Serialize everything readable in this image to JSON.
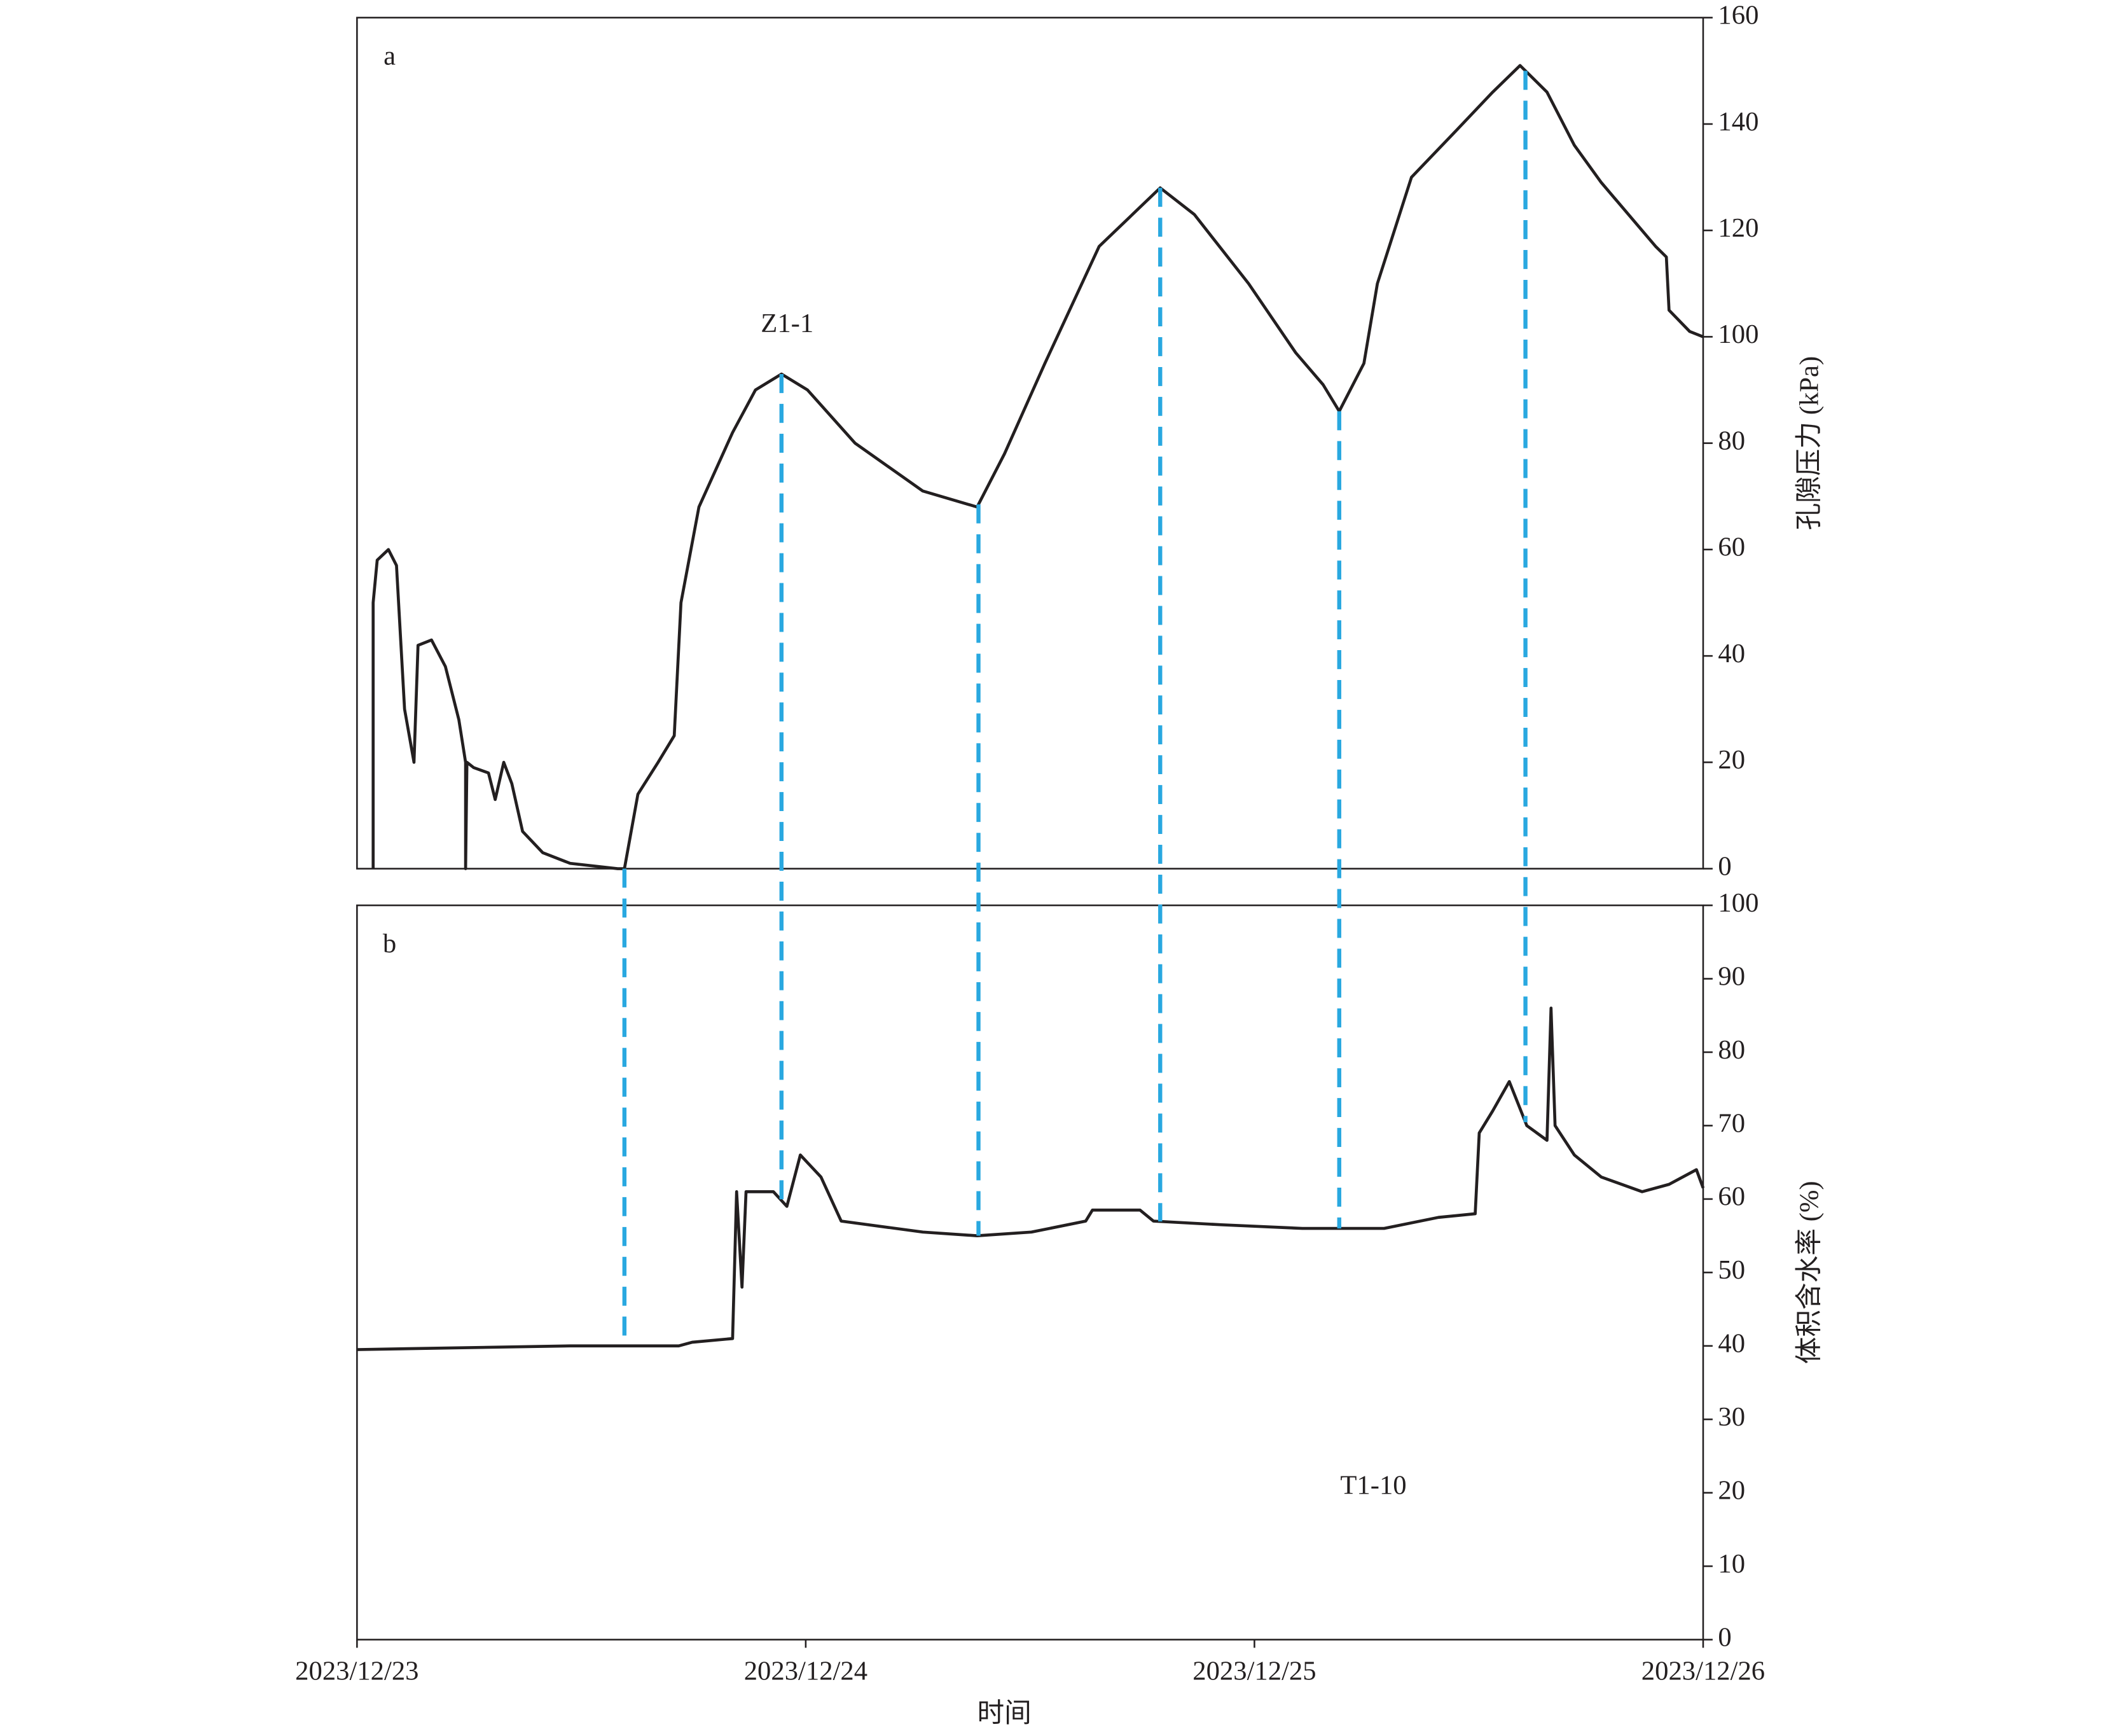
{
  "chart_data": [
    {
      "type": "line",
      "panel_label": "a",
      "ylabel": "孔隙压力 (kPa)",
      "xlim": [
        0,
        3
      ],
      "ylim": [
        0,
        160
      ],
      "yticks": [
        0,
        20,
        40,
        60,
        80,
        100,
        120,
        140,
        160
      ],
      "x": [
        0.036,
        0.036,
        0.045,
        0.07,
        0.088,
        0.106,
        0.127,
        0.136,
        0.166,
        0.197,
        0.227,
        0.242,
        0.242,
        0.245,
        0.26,
        0.293,
        0.308,
        0.327,
        0.345,
        0.369,
        0.414,
        0.475,
        0.581,
        0.596,
        0.626,
        0.671,
        0.707,
        0.722,
        0.762,
        0.837,
        0.888,
        0.946,
        1.004,
        1.11,
        1.261,
        1.382,
        1.443,
        1.533,
        1.654,
        1.79,
        1.866,
        1.987,
        2.092,
        2.153,
        2.189,
        2.244,
        2.274,
        2.35,
        2.441,
        2.531,
        2.592,
        2.652,
        2.713,
        2.773,
        2.894,
        2.918,
        2.924,
        2.97,
        3.0
      ],
      "series": [
        {
          "name": "Z1-1",
          "color": "#231f20",
          "values": [
            0,
            50,
            58,
            60,
            57,
            30,
            20,
            42,
            43,
            38,
            28,
            20,
            0,
            20,
            19,
            18,
            13,
            20,
            16,
            7,
            3,
            1,
            0,
            0,
            14,
            20,
            25,
            50,
            68,
            82,
            90,
            93,
            90,
            80,
            71,
            68,
            78,
            95,
            117,
            128,
            123,
            110,
            97,
            91,
            86,
            95,
            110,
            130,
            138,
            146,
            151,
            146,
            136,
            129,
            117,
            115,
            105,
            101,
            100
          ]
        }
      ],
      "reference_lines": {
        "color": "#29a8e0",
        "x": [
          0.596,
          0.946,
          1.385,
          1.79,
          2.189,
          2.604
        ]
      }
    },
    {
      "type": "line",
      "panel_label": "b",
      "ylabel": "体积含水率 (%)",
      "xlabel": "时间",
      "xlim": [
        0,
        3
      ],
      "xticks": [
        {
          "value": 0,
          "label": "2023/12/23"
        },
        {
          "value": 1,
          "label": "2023/12/24"
        },
        {
          "value": 2,
          "label": "2023/12/25"
        },
        {
          "value": 3,
          "label": "2023/12/26"
        }
      ],
      "ylim": [
        0,
        100
      ],
      "yticks": [
        0,
        10,
        20,
        30,
        40,
        50,
        60,
        70,
        80,
        90,
        100
      ],
      "x": [
        0,
        0.475,
        0.717,
        0.747,
        0.837,
        0.846,
        0.858,
        0.867,
        0.928,
        0.958,
        0.988,
        1.034,
        1.079,
        1.261,
        1.382,
        1.503,
        1.624,
        1.639,
        1.745,
        1.775,
        1.926,
        2.107,
        2.289,
        2.41,
        2.492,
        2.501,
        2.531,
        2.568,
        2.607,
        2.652,
        2.661,
        2.67,
        2.713,
        2.773,
        2.864,
        2.924,
        2.985,
        3.0
      ],
      "series": [
        {
          "name": "T1-10",
          "color": "#231f20",
          "values": [
            39.5,
            40,
            40,
            40.5,
            41,
            61,
            48,
            61,
            61,
            59,
            66,
            63,
            57,
            55.5,
            55,
            55.5,
            57,
            58.5,
            58.5,
            57,
            56.5,
            56,
            56,
            57.5,
            58,
            69,
            72,
            76,
            70,
            68,
            86,
            70,
            66,
            63,
            61,
            62,
            64,
            61.5
          ]
        }
      ]
    }
  ]
}
